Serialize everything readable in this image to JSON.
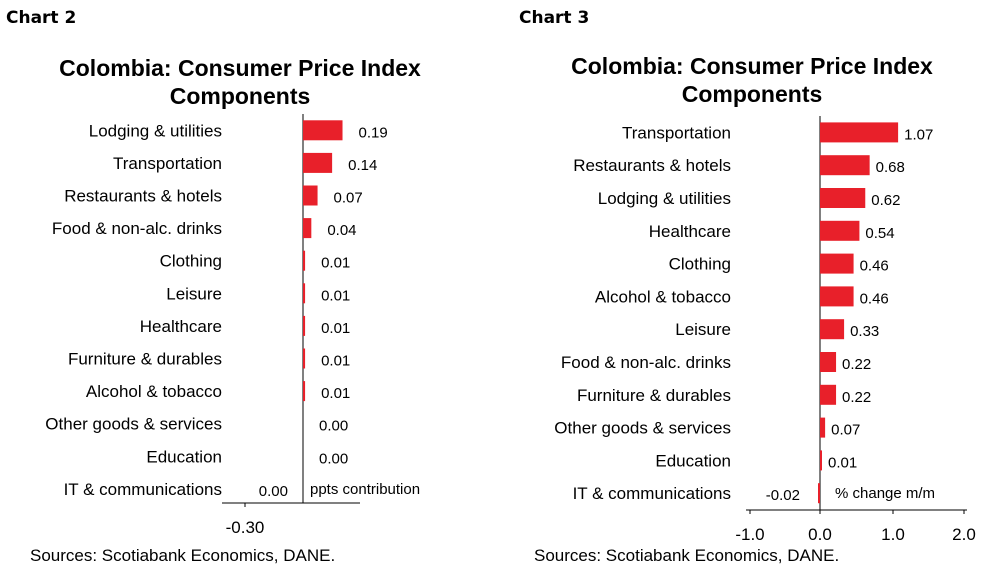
{
  "chart_data": [
    {
      "type": "bar",
      "label": "Chart 2",
      "title_line1": "Colombia: Consumer Price Index",
      "title_line2": "Components",
      "categories": [
        "Lodging & utilities",
        "Transportation",
        "Restaurants & hotels",
        "Food & non-alc. drinks",
        "Clothing",
        "Leisure",
        "Healthcare",
        "Furniture & durables",
        "Alcohol & tobacco",
        "Other goods & services",
        "Education",
        "IT & communications"
      ],
      "values": [
        0.19,
        0.14,
        0.07,
        0.04,
        0.01,
        0.01,
        0.01,
        0.01,
        0.01,
        0.0,
        0.0,
        0.0
      ],
      "value_labels": [
        "0.19",
        "0.14",
        "0.07",
        "0.04",
        "0.01",
        "0.01",
        "0.01",
        "0.01",
        "0.01",
        "0.00",
        "0.00",
        "0.00"
      ],
      "orientation": "horizontal",
      "xlabel": "ppts contribution",
      "xlim": [
        -0.3,
        0.3
      ],
      "x_ticks": [
        "-0.30"
      ],
      "bar_color": "#e8202a",
      "source": "Sources: Scotiabank Economics, DANE."
    },
    {
      "type": "bar",
      "label": "Chart 3",
      "title_line1": "Colombia: Consumer Price Index",
      "title_line2": "Components",
      "categories": [
        "Transportation",
        "Restaurants & hotels",
        "Lodging & utilities",
        "Healthcare",
        "Clothing",
        "Alcohol & tobacco",
        "Leisure",
        "Food & non-alc. drinks",
        "Furniture & durables",
        "Other goods & services",
        "Education",
        "IT & communications"
      ],
      "values": [
        1.07,
        0.68,
        0.62,
        0.54,
        0.46,
        0.46,
        0.33,
        0.22,
        0.22,
        0.07,
        0.01,
        -0.02
      ],
      "value_labels": [
        "1.07",
        "0.68",
        "0.62",
        "0.54",
        "0.46",
        "0.46",
        "0.33",
        "0.22",
        "0.22",
        "0.07",
        "0.01",
        "-0.02"
      ],
      "orientation": "horizontal",
      "xlabel": "% change m/m",
      "xlim": [
        -1.0,
        2.0
      ],
      "x_ticks": [
        "-1.0",
        "0.0",
        "1.0",
        "2.0"
      ],
      "bar_color": "#e8202a",
      "source": "Sources: Scotiabank Economics, DANE."
    }
  ]
}
